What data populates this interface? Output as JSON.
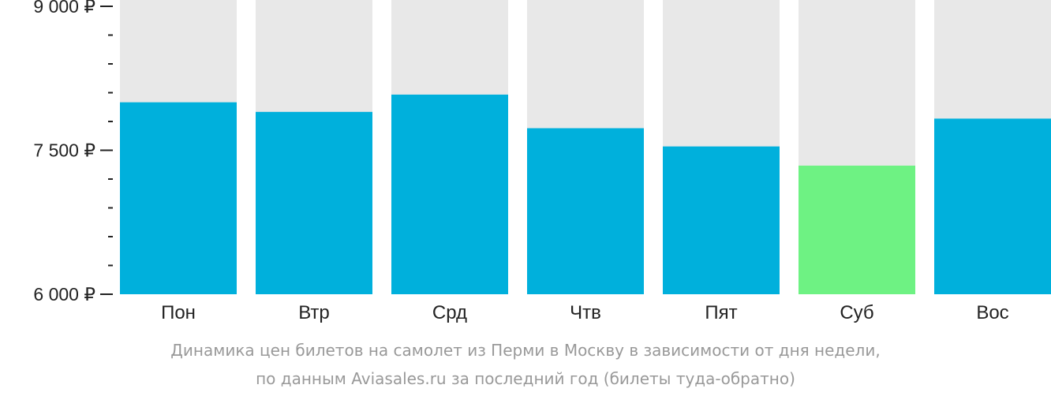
{
  "chart_data": {
    "type": "bar",
    "categories": [
      "Пон",
      "Втр",
      "Срд",
      "Чтв",
      "Пят",
      "Суб",
      "Вос"
    ],
    "values": [
      8000,
      7900,
      8080,
      7730,
      7540,
      7340,
      7830
    ],
    "ylim": [
      6000,
      9000
    ],
    "yticks": [
      {
        "value": 9000,
        "label": "9 000 ₽"
      },
      {
        "value": 7500,
        "label": "7 500 ₽"
      },
      {
        "value": 6000,
        "label": "6 000 ₽"
      }
    ],
    "minor_tick_step": 300,
    "colors": {
      "bar": "#00b0dc",
      "highlight": "#6ef283",
      "background": "#e8e8e8",
      "axis": "#222222"
    },
    "highlight_index": 5,
    "grid": false
  },
  "caption": {
    "line1": "Динамика цен билетов на самолет из Перми в Москву в зависимости от дня недели,",
    "line2": "по данным Aviasales.ru за последний год (билеты туда-обратно)"
  }
}
